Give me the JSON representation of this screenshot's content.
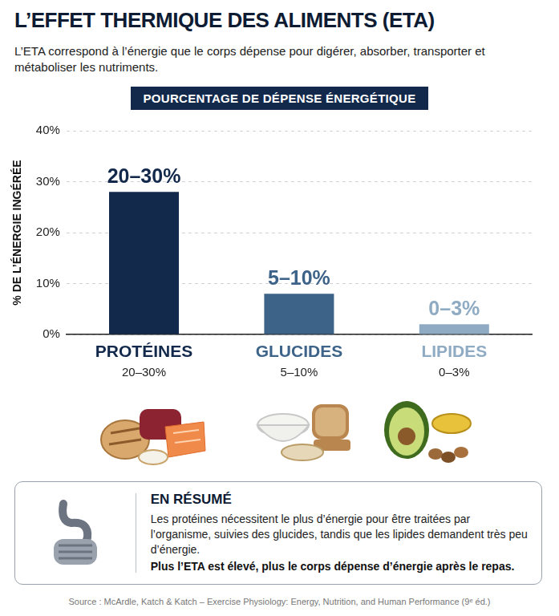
{
  "title": "L’EFFET THERMIQUE DES ALIMENTS (ETA)",
  "subtitle": "L’ETA correspond à l’énergie que le corps dépense pour digérer, absorber, transporter et métaboliser les nutriments.",
  "chart_data": {
    "type": "bar",
    "title": "POURCENTAGE DE DÉPENSE ÉNERGÉTIQUE",
    "y_label": "% DE L’ÉNERGIE INGÉRÉE",
    "categories": [
      "PROTÉINES",
      "GLUCIDES",
      "LIPIDES"
    ],
    "values": [
      28,
      8,
      2
    ],
    "value_labels": [
      "20–30%",
      "5–10%",
      "0–3%"
    ],
    "colors": [
      "#13294b",
      "#3d6389",
      "#8fabc4"
    ],
    "ylim": [
      0,
      40
    ],
    "yticks": [
      {
        "value": 0,
        "label": "0%"
      },
      {
        "value": 10,
        "label": "10%"
      },
      {
        "value": 20,
        "label": "20%"
      },
      {
        "value": 30,
        "label": "30%"
      },
      {
        "value": 40,
        "label": "40%"
      }
    ],
    "grid": true,
    "data_labels": true
  },
  "summary": {
    "title": "EN RÉSUMÉ",
    "text": "Les protéines nécessitent le plus d’énergie pour être traitées par l’organisme, suivies des glucides, tandis que les lipides demandent très peu d’énergie.",
    "conclusion": "Plus l’ETA est élevé, plus le corps dépense d’énergie après le repas."
  },
  "source": "Source : McArdle, Katch & Katch – Exercise Physiology: Energy, Nutrition, and Human Performance (9ᵉ éd.)"
}
